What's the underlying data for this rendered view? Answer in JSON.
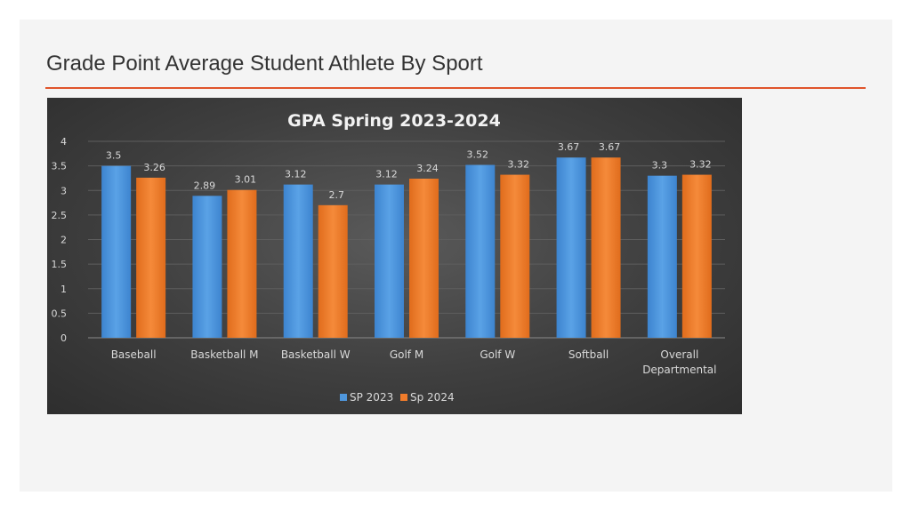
{
  "slide": {
    "title": "Grade Point Average Student Athlete By Sport"
  },
  "chart_data": {
    "type": "bar",
    "title": "GPA Spring 2023-2024",
    "xlabel": "",
    "ylabel": "",
    "ylim": [
      0,
      4
    ],
    "yticks": [
      "0",
      "0.5",
      "1",
      "1.5",
      "2",
      "2.5",
      "3",
      "3.5",
      "4"
    ],
    "grid": true,
    "legend_position": "bottom",
    "categories": [
      "Baseball",
      "Basketball M",
      "Basketball W",
      "Golf M",
      "Golf W",
      "Softball",
      "Overall Departmental"
    ],
    "series": [
      {
        "name": "SP 2023",
        "color": "#4f97dd",
        "values": [
          3.5,
          2.89,
          3.12,
          3.12,
          3.52,
          3.67,
          3.3
        ],
        "labels": [
          "3.5",
          "2.89",
          "3.12",
          "3.12",
          "3.52",
          "3.67",
          "3.3"
        ]
      },
      {
        "name": "Sp 2024",
        "color": "#f07c2b",
        "values": [
          3.26,
          3.01,
          2.7,
          3.24,
          3.32,
          3.67,
          3.32
        ],
        "labels": [
          "3.26",
          "3.01",
          "2.7",
          "3.24",
          "3.32",
          "3.67",
          "3.32"
        ]
      }
    ]
  }
}
